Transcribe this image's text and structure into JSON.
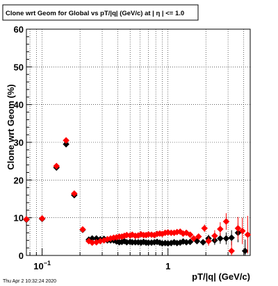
{
  "chart_data": {
    "type": "scatter",
    "title": "Clone wrt Geom for Global vs pT/|q| (GeV/c) at |  η | <= 1.0",
    "xlabel": "pT/|q| (GeV/c)",
    "ylabel": "Clone wrt Geom (%)",
    "xscale": "log",
    "xlim": [
      0.075,
      4.5
    ],
    "ylim": [
      0,
      60
    ],
    "grid": true,
    "legend": "none",
    "x_tick_labels": [
      {
        "x": 0.1,
        "label": "10",
        "sup": "−1"
      },
      {
        "x": 1,
        "label": "1",
        "sup": ""
      }
    ],
    "y_ticks": [
      0,
      10,
      20,
      30,
      40,
      50,
      60
    ],
    "x": [
      0.075,
      0.1,
      0.13,
      0.155,
      0.18,
      0.21,
      0.235,
      0.25,
      0.27,
      0.29,
      0.31,
      0.33,
      0.35,
      0.37,
      0.39,
      0.41,
      0.43,
      0.45,
      0.47,
      0.5,
      0.52,
      0.55,
      0.58,
      0.61,
      0.64,
      0.67,
      0.7,
      0.74,
      0.78,
      0.82,
      0.86,
      0.9,
      0.95,
      1.0,
      1.06,
      1.12,
      1.18,
      1.25,
      1.32,
      1.4,
      1.5,
      1.7,
      1.9,
      2.1,
      2.35,
      2.6,
      2.9,
      3.2,
      3.6,
      4.1
    ],
    "series": [
      {
        "color": "#000000",
        "values": [
          9.5,
          9.7,
          23.3,
          29.5,
          16.0,
          6.8,
          4.2,
          4.5,
          4.5,
          4.3,
          4.4,
          4.0,
          4.0,
          4.0,
          3.7,
          3.5,
          3.6,
          3.8,
          3.5,
          3.6,
          3.5,
          3.5,
          3.5,
          3.4,
          3.6,
          3.4,
          3.4,
          3.4,
          3.5,
          3.6,
          3.4,
          3.2,
          3.3,
          3.2,
          3.3,
          3.5,
          3.3,
          3.4,
          3.7,
          3.5,
          3.6,
          3.8,
          3.5,
          4.5,
          4.0,
          4.5,
          4.5,
          4.7,
          6.0,
          1.2
        ],
        "errors": [
          0.4,
          0.4,
          0.7,
          0.8,
          0.6,
          0.4,
          0.3,
          0.3,
          0.3,
          0.3,
          0.3,
          0.3,
          0.3,
          0.3,
          0.3,
          0.3,
          0.3,
          0.3,
          0.3,
          0.3,
          0.3,
          0.3,
          0.3,
          0.3,
          0.3,
          0.3,
          0.3,
          0.3,
          0.3,
          0.3,
          0.3,
          0.3,
          0.3,
          0.3,
          0.4,
          0.4,
          0.4,
          0.4,
          0.5,
          0.5,
          0.5,
          0.7,
          0.8,
          1.0,
          1.2,
          1.4,
          1.6,
          2.0,
          2.5,
          3.0
        ]
      },
      {
        "color": "#ff0000",
        "values": [
          9.6,
          9.8,
          23.7,
          30.5,
          16.4,
          6.9,
          3.8,
          3.4,
          3.5,
          3.8,
          4.0,
          4.3,
          4.5,
          4.7,
          4.8,
          5.0,
          5.0,
          5.2,
          5.4,
          5.3,
          5.5,
          5.2,
          5.3,
          5.6,
          5.4,
          5.4,
          5.6,
          5.5,
          5.4,
          5.7,
          5.8,
          5.7,
          6.0,
          6.1,
          6.0,
          6.0,
          6.2,
          6.3,
          5.8,
          6.0,
          5.5,
          4.5,
          5.0,
          7.2,
          3.8,
          5.2,
          7.0,
          9.0,
          1.2,
          7.2,
          6.5,
          5.5
        ],
        "x": [
          0.075,
          0.1,
          0.13,
          0.155,
          0.18,
          0.21,
          0.235,
          0.25,
          0.27,
          0.29,
          0.31,
          0.33,
          0.35,
          0.37,
          0.39,
          0.41,
          0.43,
          0.45,
          0.47,
          0.5,
          0.52,
          0.55,
          0.58,
          0.61,
          0.64,
          0.67,
          0.7,
          0.74,
          0.78,
          0.82,
          0.86,
          0.9,
          0.95,
          1.0,
          1.06,
          1.12,
          1.18,
          1.25,
          1.32,
          1.4,
          1.5,
          1.6,
          1.75,
          1.95,
          2.1,
          2.35,
          2.6,
          2.9,
          3.2,
          3.6,
          3.9,
          4.3
        ],
        "errors": [
          0.4,
          0.4,
          0.7,
          0.8,
          0.6,
          0.4,
          0.3,
          0.3,
          0.3,
          0.3,
          0.3,
          0.3,
          0.3,
          0.3,
          0.3,
          0.3,
          0.3,
          0.3,
          0.3,
          0.3,
          0.3,
          0.3,
          0.3,
          0.3,
          0.3,
          0.3,
          0.3,
          0.3,
          0.3,
          0.3,
          0.3,
          0.3,
          0.3,
          0.4,
          0.4,
          0.4,
          0.4,
          0.5,
          0.5,
          0.5,
          0.6,
          0.7,
          0.8,
          1.0,
          1.2,
          1.5,
          1.8,
          2.2,
          2.6,
          3.0,
          3.5,
          5.0
        ]
      }
    ]
  },
  "footer": {
    "timestamp": "Thu Apr  2 10:32:24 2020"
  }
}
